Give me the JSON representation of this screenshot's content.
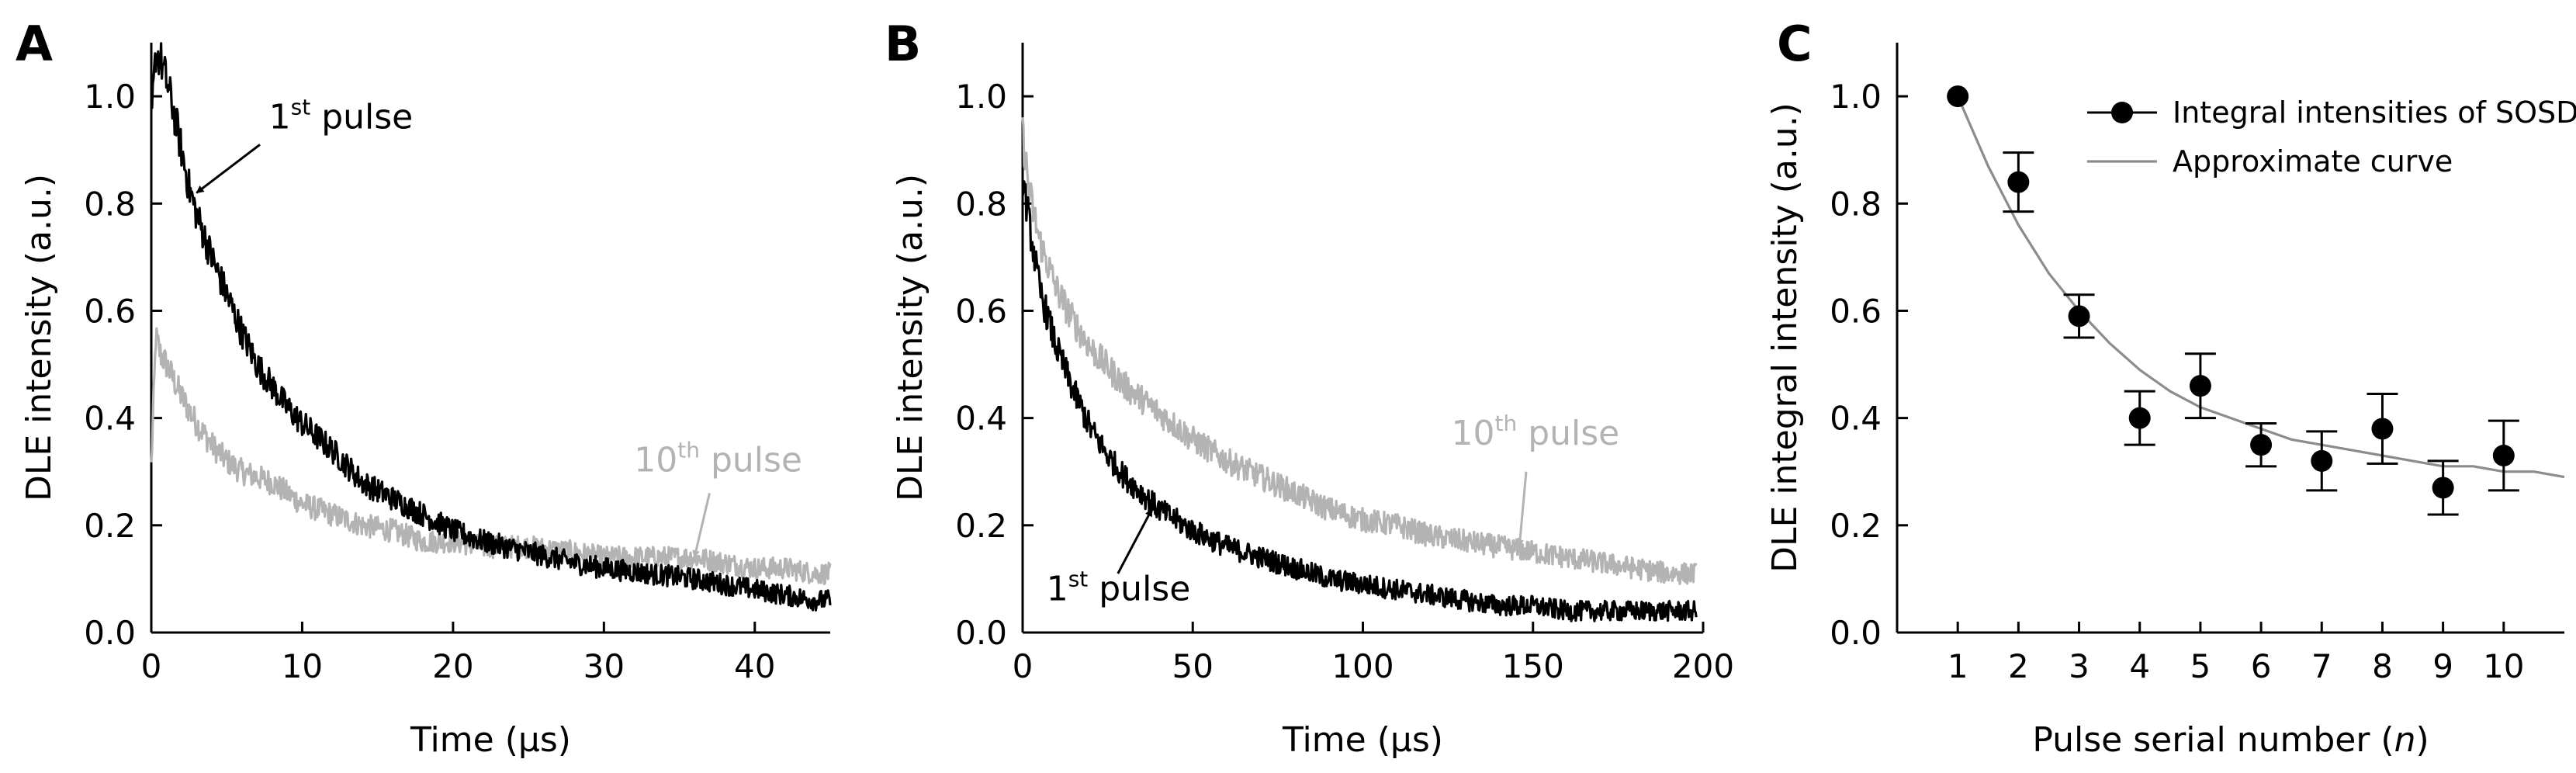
{
  "chart_data": [
    {
      "panel": "A",
      "type": "line",
      "xlabel": "Time (μs)",
      "ylabel": "DLE intensity (a.u.)",
      "xlim": [
        0,
        45
      ],
      "ylim": [
        0,
        1.1
      ],
      "xticks": [
        0,
        10,
        20,
        30,
        40
      ],
      "yticks": [
        0.0,
        0.2,
        0.4,
        0.6,
        0.8,
        1.0
      ],
      "x_tick_labels": [
        "0",
        "10",
        "20",
        "30",
        "40"
      ],
      "y_tick_labels": [
        "0.0",
        "0.2",
        "0.4",
        "0.6",
        "0.8",
        "1.0"
      ],
      "series": [
        {
          "name": "1st pulse",
          "color": "#000000",
          "x": [
            0,
            0.3,
            0.6,
            1,
            1.5,
            2,
            2.5,
            3,
            4,
            5,
            6,
            7,
            8,
            9,
            10,
            12,
            14,
            16,
            18,
            20,
            22,
            25,
            28,
            30,
            33,
            36,
            38,
            40,
            42,
            44,
            45
          ],
          "y": [
            0.95,
            1.08,
            1.07,
            1.03,
            0.97,
            0.9,
            0.83,
            0.78,
            0.7,
            0.63,
            0.56,
            0.5,
            0.46,
            0.42,
            0.39,
            0.34,
            0.28,
            0.25,
            0.22,
            0.19,
            0.17,
            0.15,
            0.13,
            0.12,
            0.11,
            0.1,
            0.09,
            0.08,
            0.07,
            0.06,
            0.06
          ]
        },
        {
          "name": "10th pulse",
          "color": "#b3b3b3",
          "x": [
            0,
            0.3,
            0.6,
            1,
            1.5,
            2,
            3,
            4,
            5,
            6,
            8,
            10,
            12,
            14,
            16,
            18,
            20,
            22,
            25,
            28,
            30,
            33,
            36,
            38,
            40,
            42,
            44,
            45
          ],
          "y": [
            0.31,
            0.55,
            0.52,
            0.5,
            0.47,
            0.44,
            0.39,
            0.35,
            0.32,
            0.3,
            0.28,
            0.24,
            0.22,
            0.2,
            0.19,
            0.17,
            0.17,
            0.16,
            0.16,
            0.15,
            0.14,
            0.14,
            0.14,
            0.13,
            0.12,
            0.12,
            0.11,
            0.11
          ]
        }
      ],
      "annotations": [
        {
          "base": "1",
          "sup": "st",
          "rest": " pulse",
          "series": "1st pulse",
          "arrow_to": [
            3,
            0.82
          ]
        },
        {
          "base": "10",
          "sup": "th",
          "rest": " pulse",
          "series": "10th pulse",
          "arrow_to": [
            36,
            0.14
          ]
        }
      ]
    },
    {
      "panel": "B",
      "type": "line",
      "xlabel": "Time (μs)",
      "ylabel": "DLE intensity (a.u.)",
      "xlim": [
        0,
        200
      ],
      "ylim": [
        0,
        1.1
      ],
      "xticks": [
        0,
        50,
        100,
        150,
        200
      ],
      "yticks": [
        0.0,
        0.2,
        0.4,
        0.6,
        0.8,
        1.0
      ],
      "x_tick_labels": [
        "0",
        "50",
        "100",
        "150",
        "200"
      ],
      "y_tick_labels": [
        "0.0",
        "0.2",
        "0.4",
        "0.6",
        "0.8",
        "1.0"
      ],
      "series": [
        {
          "name": "1st pulse",
          "color": "#000000",
          "x": [
            0,
            2,
            5,
            10,
            15,
            20,
            25,
            30,
            40,
            50,
            60,
            70,
            80,
            90,
            100,
            110,
            120,
            130,
            140,
            150,
            160,
            170,
            180,
            190,
            198
          ],
          "y": [
            0.85,
            0.76,
            0.64,
            0.53,
            0.45,
            0.38,
            0.33,
            0.29,
            0.23,
            0.19,
            0.16,
            0.14,
            0.12,
            0.1,
            0.09,
            0.08,
            0.07,
            0.06,
            0.05,
            0.05,
            0.04,
            0.04,
            0.04,
            0.04,
            0.04
          ]
        },
        {
          "name": "10th pulse",
          "color": "#b3b3b3",
          "x": [
            0,
            2,
            5,
            10,
            15,
            20,
            30,
            40,
            50,
            60,
            70,
            80,
            90,
            100,
            110,
            120,
            130,
            140,
            150,
            160,
            170,
            180,
            190,
            198
          ],
          "y": [
            0.93,
            0.82,
            0.73,
            0.64,
            0.58,
            0.53,
            0.46,
            0.41,
            0.36,
            0.32,
            0.29,
            0.26,
            0.23,
            0.21,
            0.2,
            0.18,
            0.17,
            0.16,
            0.15,
            0.14,
            0.13,
            0.12,
            0.11,
            0.11
          ]
        }
      ],
      "annotations": [
        {
          "base": "1",
          "sup": "st",
          "rest": " pulse",
          "series": "1st pulse",
          "arrow_to": [
            38,
            0.23
          ]
        },
        {
          "base": "10",
          "sup": "th",
          "rest": " pulse",
          "series": "10th pulse",
          "arrow_to": [
            146,
            0.16
          ]
        }
      ]
    },
    {
      "panel": "C",
      "type": "scatter",
      "xlabel_parts": [
        "Pulse serial number (",
        "n",
        ")"
      ],
      "ylabel": "DLE integral intensity (a.u.)",
      "xlim": [
        0,
        11
      ],
      "ylim": [
        0,
        1.1
      ],
      "xticks": [
        1,
        2,
        3,
        4,
        5,
        6,
        7,
        8,
        9,
        10
      ],
      "yticks": [
        0.0,
        0.2,
        0.4,
        0.6,
        0.8,
        1.0
      ],
      "x_tick_labels": [
        "1",
        "2",
        "3",
        "4",
        "5",
        "6",
        "7",
        "8",
        "9",
        "10"
      ],
      "y_tick_labels": [
        "0.0",
        "0.2",
        "0.4",
        "0.6",
        "0.8",
        "1.0"
      ],
      "legend_position": "top-right",
      "legend": [
        "Integral intensities of SOSDF",
        "Approximate curve"
      ],
      "series": [
        {
          "name": "Integral intensities of SOSDF",
          "color": "#000000",
          "x": [
            1,
            2,
            3,
            4,
            5,
            6,
            7,
            8,
            9,
            10
          ],
          "y": [
            1.0,
            0.84,
            0.59,
            0.4,
            0.46,
            0.35,
            0.32,
            0.38,
            0.27,
            0.33
          ],
          "err": [
            0,
            0.055,
            0.04,
            0.05,
            0.06,
            0.04,
            0.055,
            0.065,
            0.05,
            0.065
          ]
        },
        {
          "name": "Approximate curve",
          "color": "#8c8c8c",
          "x": [
            1,
            1.5,
            2,
            2.5,
            3,
            3.5,
            4,
            4.5,
            5,
            5.5,
            6,
            6.5,
            7,
            7.5,
            8,
            8.5,
            9,
            9.5,
            10,
            10.5,
            11
          ],
          "y": [
            1.0,
            0.87,
            0.76,
            0.67,
            0.6,
            0.54,
            0.49,
            0.45,
            0.42,
            0.4,
            0.38,
            0.36,
            0.35,
            0.34,
            0.33,
            0.32,
            0.31,
            0.31,
            0.3,
            0.3,
            0.29
          ]
        }
      ]
    }
  ]
}
